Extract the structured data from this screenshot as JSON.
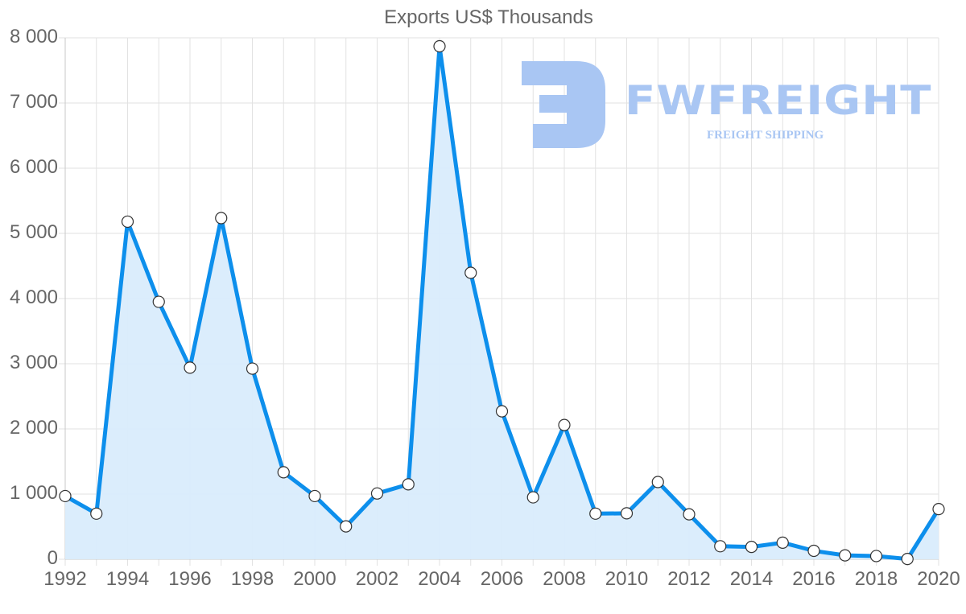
{
  "chart_data": {
    "type": "area",
    "title": "Exports US$ Thousands",
    "xlabel": "",
    "ylabel": "",
    "x": [
      1992,
      1993,
      1994,
      1995,
      1996,
      1997,
      1998,
      1999,
      2000,
      2001,
      2002,
      2003,
      2004,
      2005,
      2006,
      2007,
      2008,
      2009,
      2010,
      2011,
      2012,
      2013,
      2014,
      2015,
      2016,
      2017,
      2018,
      2019,
      2020
    ],
    "series": [
      {
        "name": "Exports US$ Thousands",
        "values": [
          970,
          700,
          5180,
          3950,
          2940,
          5235,
          2925,
          1335,
          970,
          505,
          1010,
          1150,
          7870,
          4395,
          2270,
          950,
          2060,
          700,
          705,
          1185,
          690,
          200,
          190,
          255,
          130,
          60,
          50,
          5,
          770
        ],
        "color": "#0d8fec",
        "fill": "#d9ecfc"
      }
    ],
    "ylim": [
      0,
      8000
    ],
    "yticks": [
      "0",
      "1 000",
      "2 000",
      "3 000",
      "4 000",
      "5 000",
      "6 000",
      "7 000",
      "8 000"
    ],
    "xticks": [
      "1992",
      "1994",
      "1996",
      "1998",
      "2000",
      "2002",
      "2004",
      "2006",
      "2008",
      "2010",
      "2012",
      "2014",
      "2016",
      "2018",
      "2020"
    ],
    "grid": true,
    "legend": "none"
  },
  "watermark": {
    "brand": "FWFREIGHT",
    "tagline": "FREIGHT SHIPPING"
  }
}
